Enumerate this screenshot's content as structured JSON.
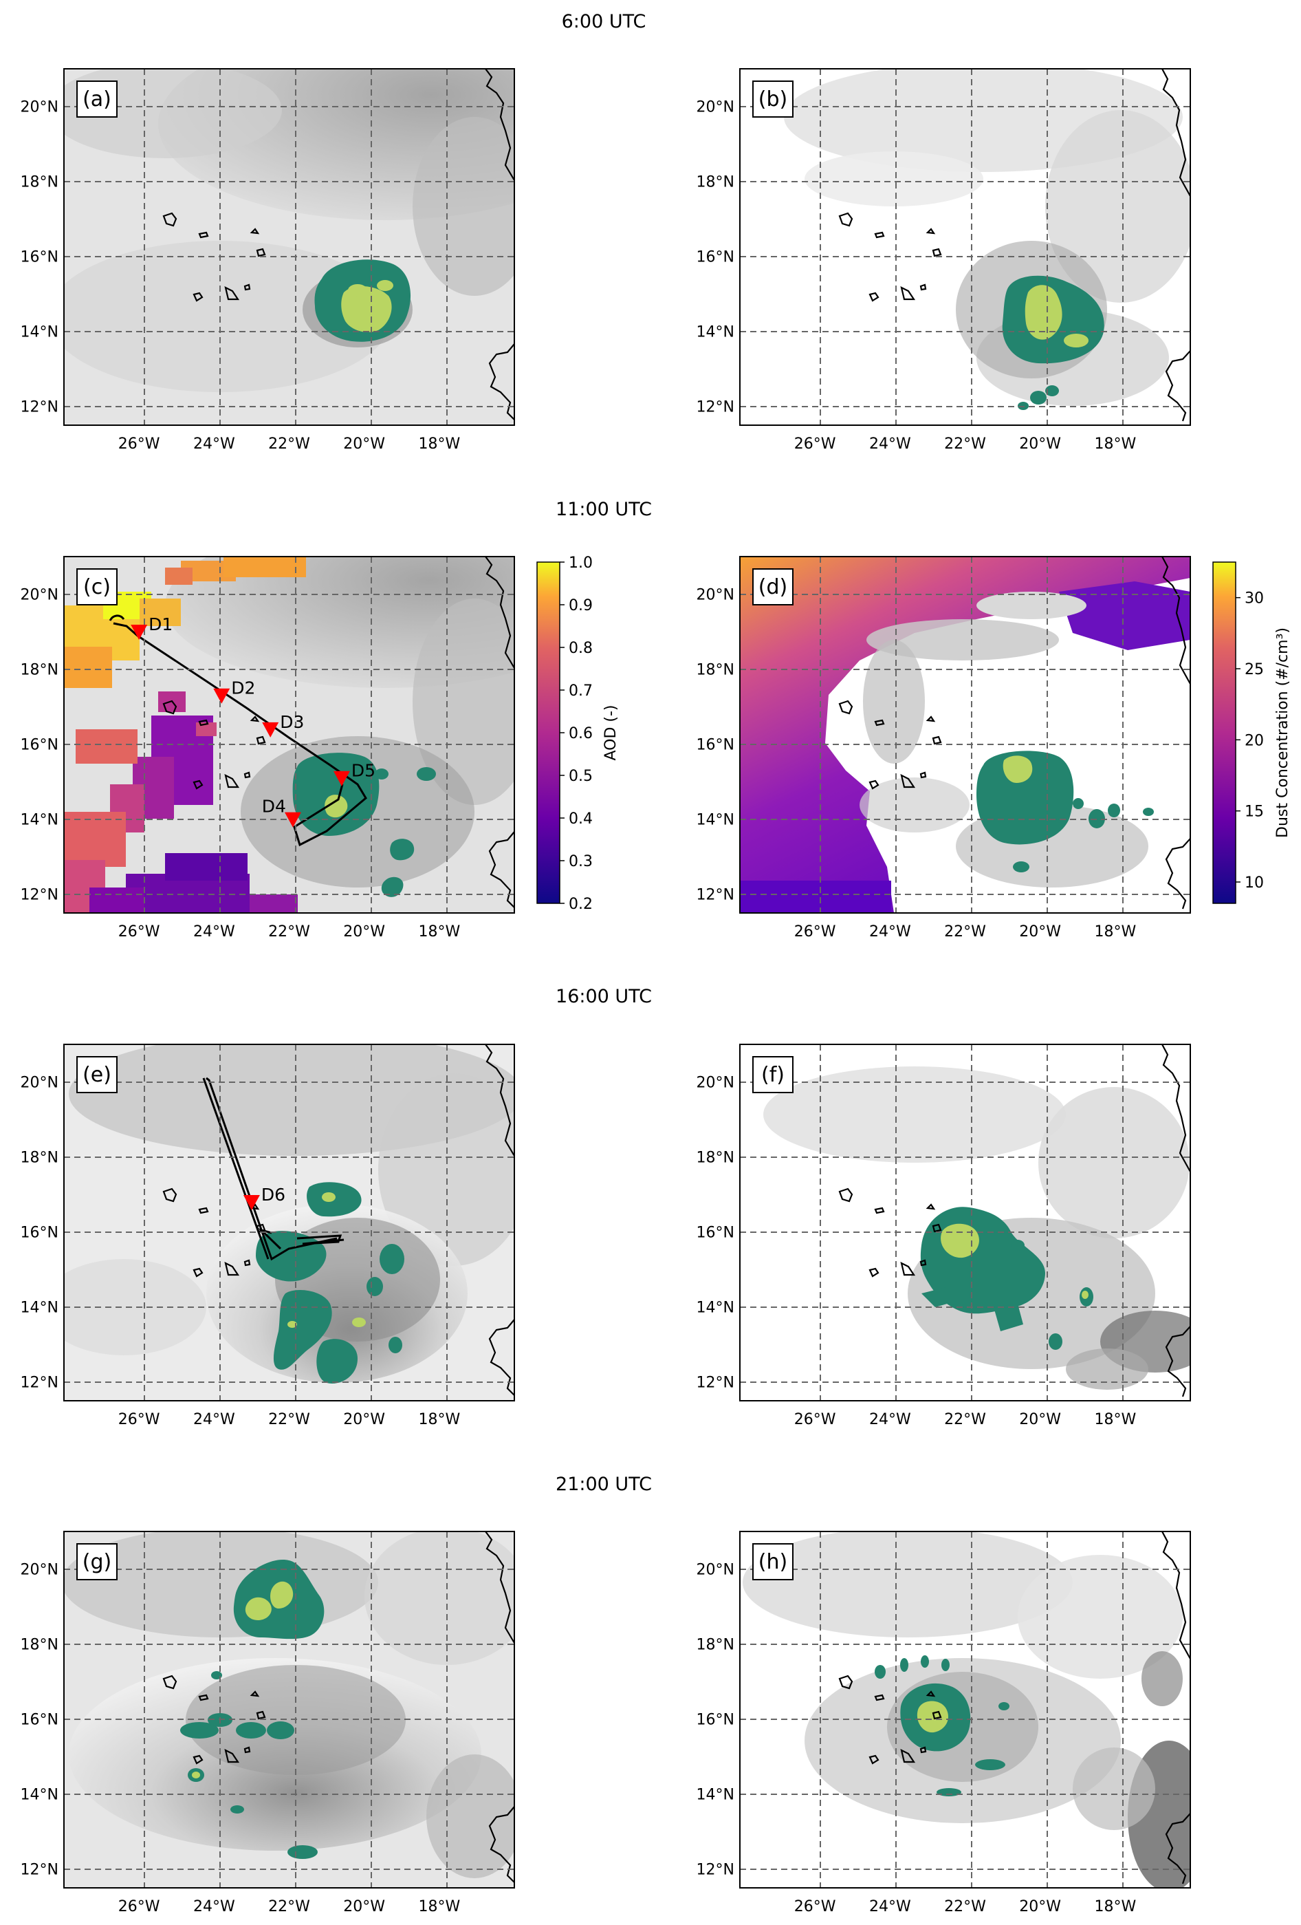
{
  "time_titles": [
    "6:00 UTC",
    "11:00 UTC",
    "16:00 UTC",
    "21:00 UTC"
  ],
  "lon_ticks": [
    "26°W",
    "24°W",
    "22°W",
    "20°W",
    "18°W"
  ],
  "lat_ticks": [
    "12°N",
    "14°N",
    "16°N",
    "18°N",
    "20°N"
  ],
  "map_extent": {
    "lon_min": -28,
    "lon_max": -16,
    "lat_min": 11.5,
    "lat_max": 21.0
  },
  "panels": [
    {
      "label": "(a)",
      "time": "6:00 UTC",
      "kind": "observation"
    },
    {
      "label": "(b)",
      "time": "6:00 UTC",
      "kind": "model"
    },
    {
      "label": "(c)",
      "time": "11:00 UTC",
      "kind": "observation"
    },
    {
      "label": "(d)",
      "time": "11:00 UTC",
      "kind": "model"
    },
    {
      "label": "(e)",
      "time": "16:00 UTC",
      "kind": "observation"
    },
    {
      "label": "(f)",
      "time": "16:00 UTC",
      "kind": "model"
    },
    {
      "label": "(g)",
      "time": "21:00 UTC",
      "kind": "observation"
    },
    {
      "label": "(h)",
      "time": "21:00 UTC",
      "kind": "model"
    }
  ],
  "aod_colorbar": {
    "label": "AOD (-)",
    "min": 0.2,
    "max": 1.0,
    "ticks": [
      "0.2",
      "0.3",
      "0.4",
      "0.5",
      "0.6",
      "0.7",
      "0.8",
      "0.9",
      "1.0"
    ]
  },
  "dust_colorbar": {
    "label": "Dust Concentration (#/cm³)",
    "min": 8.5,
    "max": 32.5,
    "ticks": [
      "10",
      "15",
      "20",
      "25",
      "30"
    ]
  },
  "dropsondes": [
    {
      "name": "D1",
      "lon": -26.0,
      "lat": 19.0
    },
    {
      "name": "D2",
      "lon": -23.8,
      "lat": 17.3
    },
    {
      "name": "D3",
      "lon": -22.5,
      "lat": 16.4
    },
    {
      "name": "D4",
      "lon": -21.9,
      "lat": 14.0
    },
    {
      "name": "D5",
      "lon": -20.6,
      "lat": 15.1
    },
    {
      "name": "D6",
      "lon": -23.0,
      "lat": 16.8
    }
  ],
  "colors": {
    "deep_convection": "#23846e",
    "overshooting": "#b9d562",
    "coastline": "#000000",
    "marker": "#ff0000",
    "grid": "#666666"
  }
}
